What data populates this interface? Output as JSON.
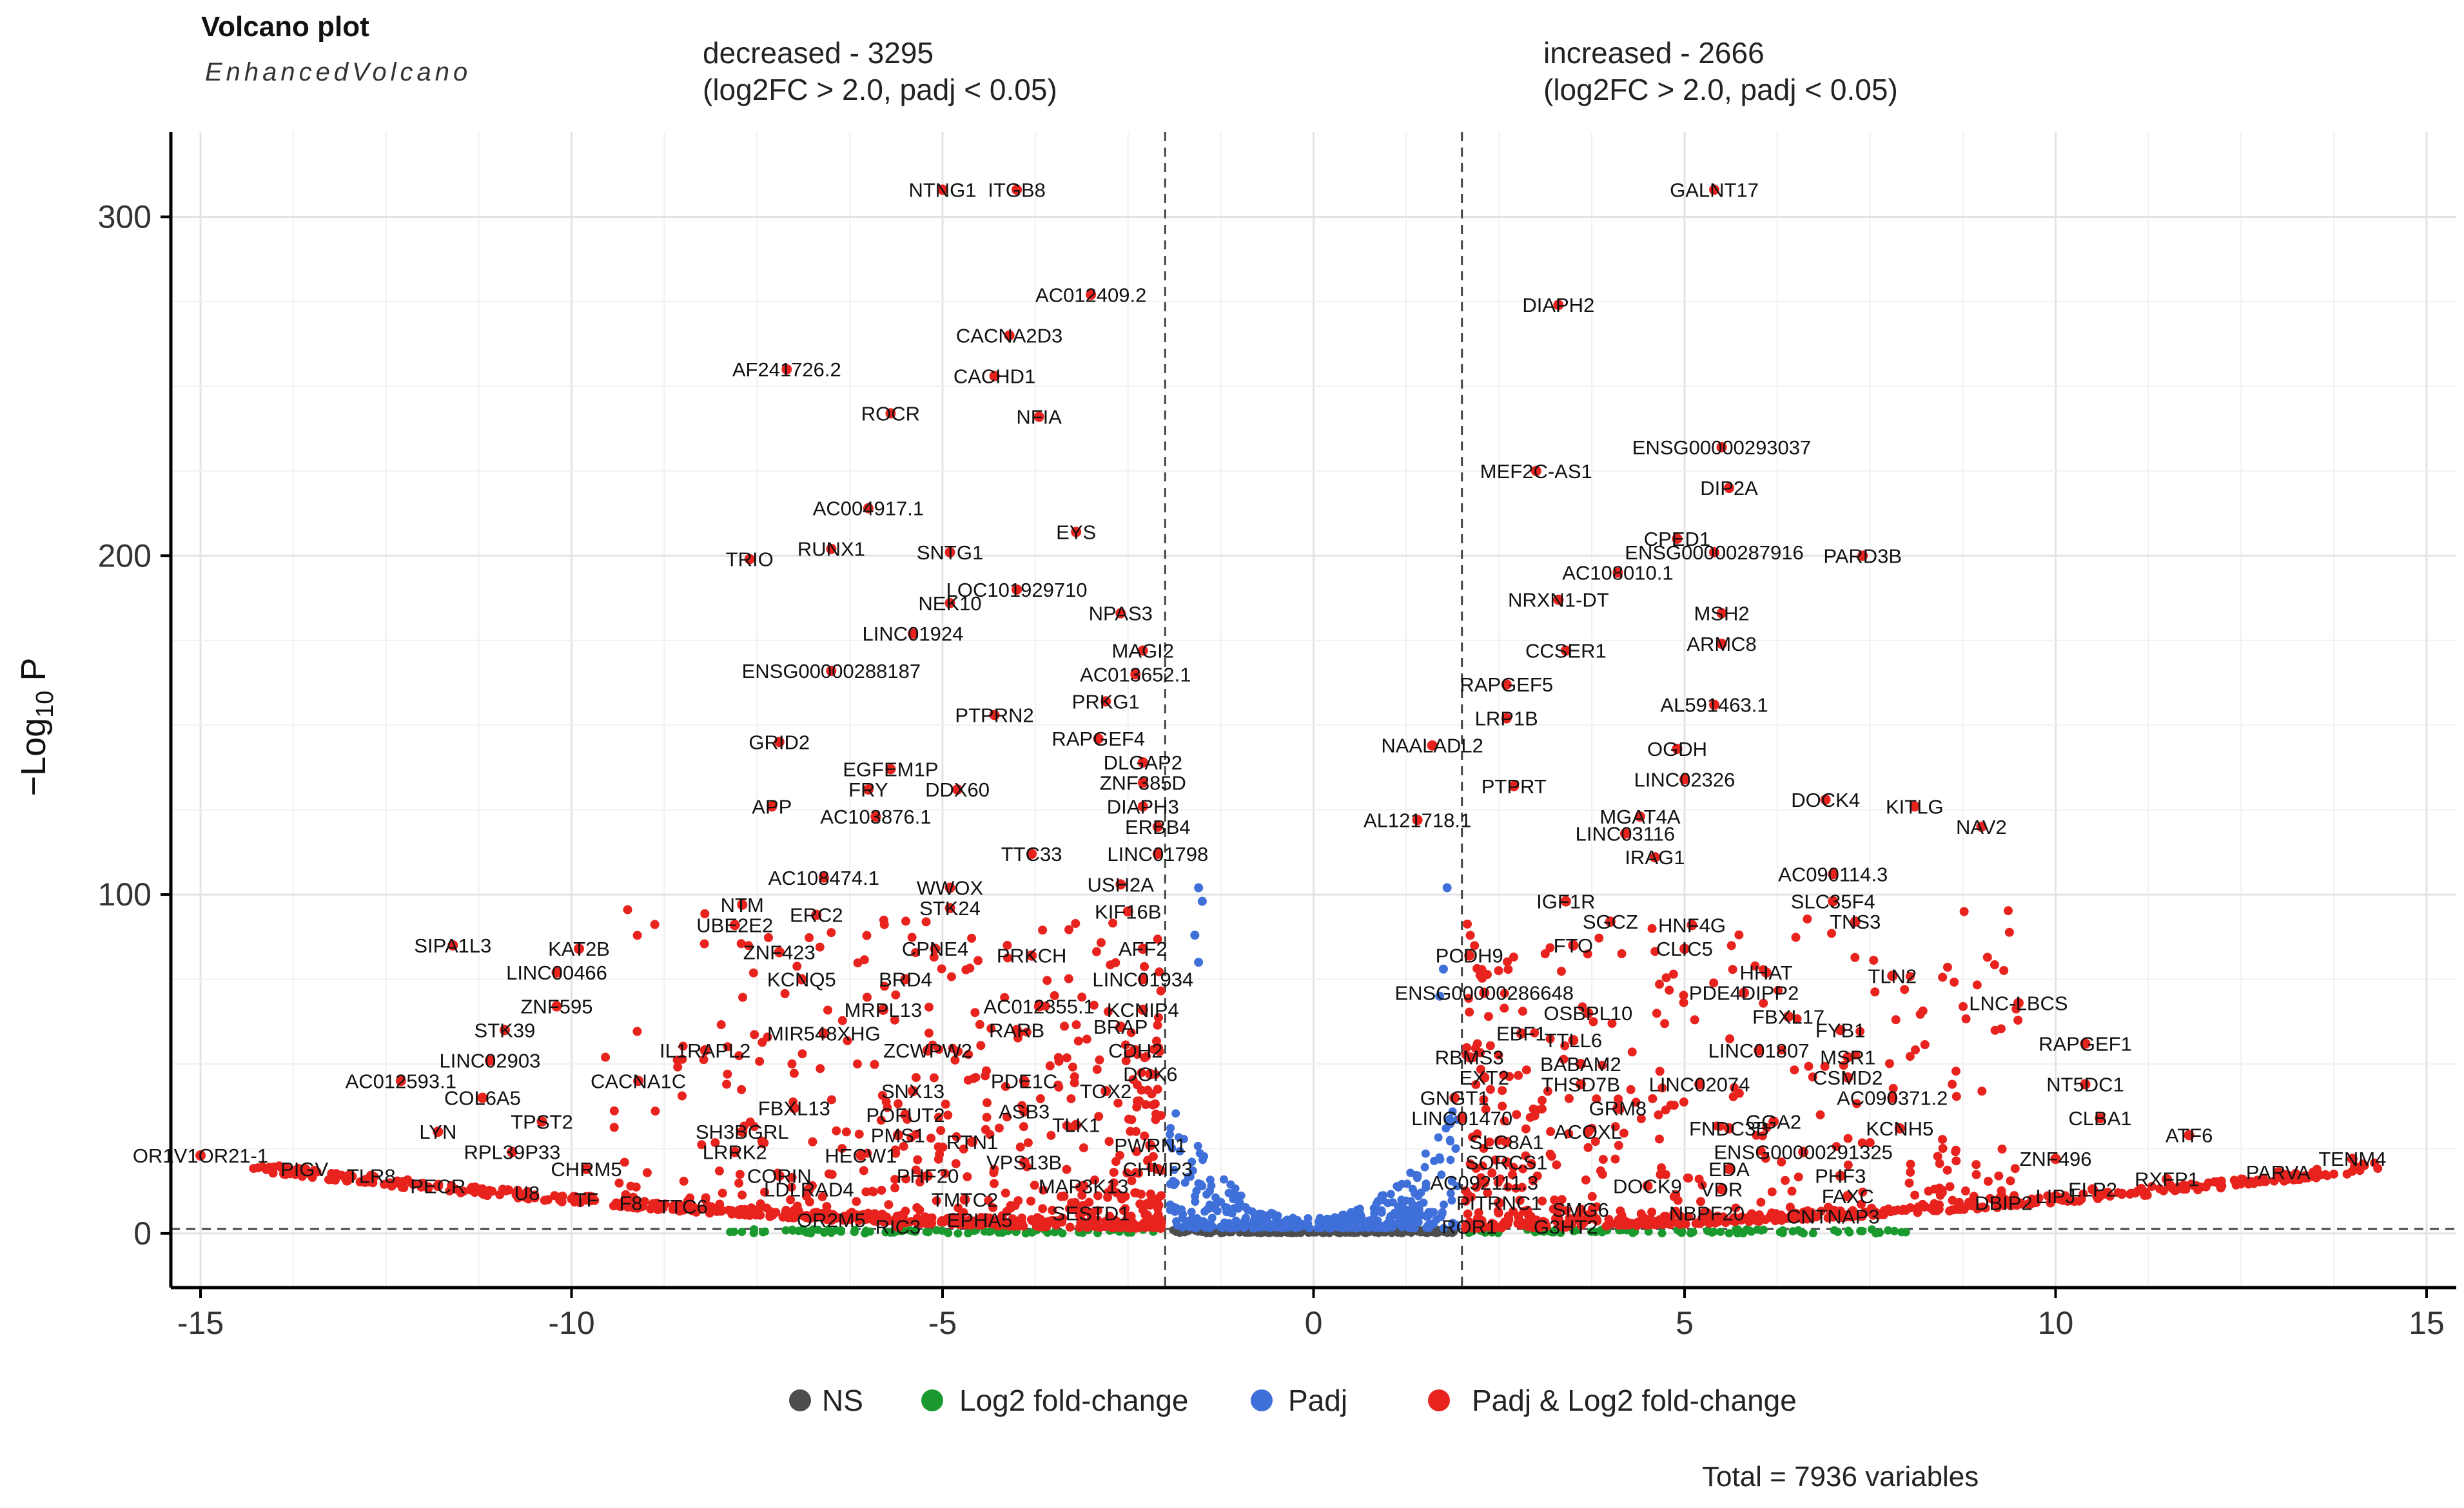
{
  "chart_data": {
    "type": "scatter",
    "title": "Volcano plot",
    "subtitle": "EnhancedVolcano",
    "xlabel": "",
    "ylabel": {
      "prefix": "−Log",
      "subscript": "10",
      "suffix": " P"
    },
    "xlim": [
      -15.4,
      15.4
    ],
    "ylim": [
      -16,
      325
    ],
    "xticks": [
      -15,
      -10,
      -5,
      0,
      5,
      10,
      15
    ],
    "xtick_labels": [
      "-15",
      "-10",
      "-5",
      "0",
      "5",
      "10",
      "15"
    ],
    "yticks": [
      0,
      100,
      200,
      300
    ],
    "ytick_labels": [
      "0",
      "100",
      "200",
      "300"
    ],
    "grid": true,
    "fc_cutoff": 2.0,
    "p_cutoff_y": 1.3,
    "annotations": {
      "left": {
        "line1": "decreased - 3295",
        "line2": "(log2FC > 2.0, padj < 0.05)"
      },
      "right": {
        "line1": "increased - 2666",
        "line2": "(log2FC > 2.0, padj < 0.05)"
      }
    },
    "legend": {
      "position": "bottom",
      "entries": [
        {
          "name": "NS",
          "color": "#4d4d4d"
        },
        {
          "name": "Log2 fold-change",
          "color": "#1a9a2e"
        },
        {
          "name": "Padj",
          "color": "#3f6fd8"
        },
        {
          "name": "Padj & Log2 fold-change",
          "color": "#e8231e"
        }
      ]
    },
    "caption": "Total = 7936 variables",
    "labeled_points": [
      {
        "label": "NTNG1",
        "x": -5.0,
        "y": 308
      },
      {
        "label": "ITGB8",
        "x": -4.0,
        "y": 308
      },
      {
        "label": "GALNT17",
        "x": 5.4,
        "y": 308
      },
      {
        "label": "AC012409.2",
        "x": -3.0,
        "y": 277
      },
      {
        "label": "DIAPH2",
        "x": 3.3,
        "y": 274
      },
      {
        "label": "CACNA2D3",
        "x": -4.1,
        "y": 265
      },
      {
        "label": "AF241726.2",
        "x": -7.1,
        "y": 255
      },
      {
        "label": "CACHD1",
        "x": -4.3,
        "y": 253
      },
      {
        "label": "ROCR",
        "x": -5.7,
        "y": 242
      },
      {
        "label": "NFIA",
        "x": -3.7,
        "y": 241
      },
      {
        "label": "ENSG00000293037",
        "x": 5.5,
        "y": 232
      },
      {
        "label": "MEF2C-AS1",
        "x": 3.0,
        "y": 225
      },
      {
        "label": "DIP2A",
        "x": 5.6,
        "y": 220
      },
      {
        "label": "AC004917.1",
        "x": -6.0,
        "y": 214
      },
      {
        "label": "EYS",
        "x": -3.2,
        "y": 207
      },
      {
        "label": "CPED1",
        "x": 4.9,
        "y": 205
      },
      {
        "label": "RUNX1",
        "x": -6.5,
        "y": 202
      },
      {
        "label": "SNTG1",
        "x": -4.9,
        "y": 201
      },
      {
        "label": "ENSG00000287916",
        "x": 5.4,
        "y": 201
      },
      {
        "label": "PARD3B",
        "x": 7.4,
        "y": 200
      },
      {
        "label": "TRIO",
        "x": -7.6,
        "y": 199
      },
      {
        "label": "AC108010.1",
        "x": 4.1,
        "y": 195
      },
      {
        "label": "LOC101929710",
        "x": -4.0,
        "y": 190
      },
      {
        "label": "NRXN1-DT",
        "x": 3.3,
        "y": 187
      },
      {
        "label": "NEK10",
        "x": -4.9,
        "y": 186
      },
      {
        "label": "NPAS3",
        "x": -2.6,
        "y": 183
      },
      {
        "label": "MSH2",
        "x": 5.5,
        "y": 183
      },
      {
        "label": "LINC01924",
        "x": -5.4,
        "y": 177
      },
      {
        "label": "ARMC8",
        "x": 5.5,
        "y": 174
      },
      {
        "label": "MAGI2",
        "x": -2.3,
        "y": 172
      },
      {
        "label": "CCSER1",
        "x": 3.4,
        "y": 172
      },
      {
        "label": "ENSG00000288187",
        "x": -6.5,
        "y": 166
      },
      {
        "label": "AC013652.1",
        "x": -2.4,
        "y": 165
      },
      {
        "label": "RAPGEF5",
        "x": 2.6,
        "y": 162
      },
      {
        "label": "PRKG1",
        "x": -2.8,
        "y": 157
      },
      {
        "label": "AL591463.1",
        "x": 5.4,
        "y": 156
      },
      {
        "label": "PTPRN2",
        "x": -4.3,
        "y": 153
      },
      {
        "label": "LRP1B",
        "x": 2.6,
        "y": 152
      },
      {
        "label": "RAPGEF4",
        "x": -2.9,
        "y": 146
      },
      {
        "label": "GRID2",
        "x": -7.2,
        "y": 145
      },
      {
        "label": "NAALADL2",
        "x": 1.6,
        "y": 144
      },
      {
        "label": "OGDH",
        "x": 4.9,
        "y": 143
      },
      {
        "label": "DLGAP2",
        "x": -2.3,
        "y": 139
      },
      {
        "label": "EGFEM1P",
        "x": -5.7,
        "y": 137
      },
      {
        "label": "LINC02326",
        "x": 5.0,
        "y": 134
      },
      {
        "label": "ZNF385D",
        "x": -2.3,
        "y": 133
      },
      {
        "label": "PTPRT",
        "x": 2.7,
        "y": 132
      },
      {
        "label": "FRY",
        "x": -6.0,
        "y": 131
      },
      {
        "label": "DDX60",
        "x": -4.8,
        "y": 131
      },
      {
        "label": "DOCK4",
        "x": 6.9,
        "y": 128
      },
      {
        "label": "KITLG",
        "x": 8.1,
        "y": 126
      },
      {
        "label": "DIAPH3",
        "x": -2.3,
        "y": 126
      },
      {
        "label": "APP",
        "x": -7.3,
        "y": 126
      },
      {
        "label": "AC103876.1",
        "x": -5.9,
        "y": 123
      },
      {
        "label": "MGAT4A",
        "x": 4.4,
        "y": 123
      },
      {
        "label": "AL121718.1",
        "x": 1.4,
        "y": 122
      },
      {
        "label": "NAV2",
        "x": 9.0,
        "y": 120
      },
      {
        "label": "ERBB4",
        "x": -2.1,
        "y": 120
      },
      {
        "label": "LINC03116",
        "x": 4.2,
        "y": 118
      },
      {
        "label": "TTC33",
        "x": -3.8,
        "y": 112
      },
      {
        "label": "LINC01798",
        "x": -2.1,
        "y": 112
      },
      {
        "label": "IRAG1",
        "x": 4.6,
        "y": 111
      },
      {
        "label": "AC108474.1",
        "x": -6.6,
        "y": 105
      },
      {
        "label": "AC090114.3",
        "x": 7.0,
        "y": 106
      },
      {
        "label": "USH2A",
        "x": -2.6,
        "y": 103
      },
      {
        "label": "WWOX",
        "x": -4.9,
        "y": 102
      },
      {
        "label": "IGF1R",
        "x": 3.4,
        "y": 98
      },
      {
        "label": "SLC35F4",
        "x": 7.0,
        "y": 98
      },
      {
        "label": "NTM",
        "x": -7.7,
        "y": 97
      },
      {
        "label": "STK24",
        "x": -4.9,
        "y": 96
      },
      {
        "label": "KIF16B",
        "x": -2.5,
        "y": 95
      },
      {
        "label": "ERC2",
        "x": -6.7,
        "y": 94
      },
      {
        "label": "SGCZ",
        "x": 4.0,
        "y": 92
      },
      {
        "label": "TNS3",
        "x": 7.3,
        "y": 92
      },
      {
        "label": "UBE2E2",
        "x": -7.8,
        "y": 91
      },
      {
        "label": "HNF4G",
        "x": 5.1,
        "y": 91
      },
      {
        "label": "SIPA1L3",
        "x": -11.6,
        "y": 85
      },
      {
        "label": "KAT2B",
        "x": -9.9,
        "y": 84
      },
      {
        "label": "ZNF423",
        "x": -7.2,
        "y": 83
      },
      {
        "label": "CPNE4",
        "x": -5.1,
        "y": 84
      },
      {
        "label": "AFF2",
        "x": -2.3,
        "y": 84
      },
      {
        "label": "FTO",
        "x": 3.5,
        "y": 85
      },
      {
        "label": "CLIC5",
        "x": 5.0,
        "y": 84
      },
      {
        "label": "PRKCH",
        "x": -3.8,
        "y": 82
      },
      {
        "label": "PCDH9",
        "x": 2.1,
        "y": 82
      },
      {
        "label": "LINC00466",
        "x": -10.2,
        "y": 77
      },
      {
        "label": "HHAT",
        "x": 6.1,
        "y": 77
      },
      {
        "label": "TLN2",
        "x": 7.8,
        "y": 76
      },
      {
        "label": "KCNQ5",
        "x": -6.9,
        "y": 75
      },
      {
        "label": "BRD4",
        "x": -5.5,
        "y": 75
      },
      {
        "label": "LINC01934",
        "x": -2.3,
        "y": 75
      },
      {
        "label": "ENSG00000286648",
        "x": 2.3,
        "y": 71
      },
      {
        "label": "PDE4DIPP2",
        "x": 5.8,
        "y": 71
      },
      {
        "label": "ZNF595",
        "x": -10.2,
        "y": 67
      },
      {
        "label": "LNC-LBCS",
        "x": 9.5,
        "y": 68
      },
      {
        "label": "MRPL13",
        "x": -5.8,
        "y": 66
      },
      {
        "label": "AC012355.1",
        "x": -3.7,
        "y": 67
      },
      {
        "label": "KCNIP4",
        "x": -2.3,
        "y": 66
      },
      {
        "label": "OSBPL10",
        "x": 3.7,
        "y": 65
      },
      {
        "label": "FBXL17",
        "x": 6.4,
        "y": 64
      },
      {
        "label": "STK39",
        "x": -10.9,
        "y": 60
      },
      {
        "label": "MIR548XHG",
        "x": -6.6,
        "y": 59
      },
      {
        "label": "RARB",
        "x": -4.0,
        "y": 60
      },
      {
        "label": "BRAP",
        "x": -2.6,
        "y": 61
      },
      {
        "label": "EBF1",
        "x": 2.8,
        "y": 59
      },
      {
        "label": "FYB1",
        "x": 7.1,
        "y": 60
      },
      {
        "label": "TTLL6",
        "x": 3.5,
        "y": 57
      },
      {
        "label": "RAPGEF1",
        "x": 10.4,
        "y": 56
      },
      {
        "label": "IL1RAPL2",
        "x": -8.2,
        "y": 54
      },
      {
        "label": "ZCWPW2",
        "x": -5.2,
        "y": 54
      },
      {
        "label": "CDH2",
        "x": -2.4,
        "y": 54
      },
      {
        "label": "LINC01807",
        "x": 6.0,
        "y": 54
      },
      {
        "label": "RBMS3",
        "x": 2.1,
        "y": 52
      },
      {
        "label": "BABAM2",
        "x": 3.6,
        "y": 50
      },
      {
        "label": "MSR1",
        "x": 7.2,
        "y": 52
      },
      {
        "label": "LINC02903",
        "x": -11.1,
        "y": 51
      },
      {
        "label": "DOK6",
        "x": -2.2,
        "y": 47
      },
      {
        "label": "CSMD2",
        "x": 7.2,
        "y": 46
      },
      {
        "label": "AC012593.1",
        "x": -12.3,
        "y": 45
      },
      {
        "label": "CACNA1C",
        "x": -9.1,
        "y": 45
      },
      {
        "label": "PDE1C",
        "x": -3.9,
        "y": 45
      },
      {
        "label": "EXT2",
        "x": 2.3,
        "y": 46
      },
      {
        "label": "THSD7B",
        "x": 3.6,
        "y": 44
      },
      {
        "label": "LINC02074",
        "x": 5.2,
        "y": 44
      },
      {
        "label": "NT5DC1",
        "x": 10.4,
        "y": 44
      },
      {
        "label": "SNX13",
        "x": -5.4,
        "y": 42
      },
      {
        "label": "TOX2",
        "x": -2.8,
        "y": 42
      },
      {
        "label": "GNGT1",
        "x": 1.9,
        "y": 40
      },
      {
        "label": "AC090371.2",
        "x": 7.8,
        "y": 40
      },
      {
        "label": "COL6A5",
        "x": -11.2,
        "y": 40
      },
      {
        "label": "FBXL13",
        "x": -7.0,
        "y": 37
      },
      {
        "label": "ASB3",
        "x": -3.9,
        "y": 36
      },
      {
        "label": "GRM8",
        "x": 4.1,
        "y": 37
      },
      {
        "label": "POFUT2",
        "x": -5.5,
        "y": 35
      },
      {
        "label": "TLK1",
        "x": -3.2,
        "y": 32
      },
      {
        "label": "FNDC3B",
        "x": 5.6,
        "y": 31
      },
      {
        "label": "KCNH5",
        "x": 7.9,
        "y": 31
      },
      {
        "label": "CLBA1",
        "x": 10.6,
        "y": 34
      },
      {
        "label": "TPST2",
        "x": -10.4,
        "y": 33
      },
      {
        "label": "LINC01470",
        "x": 2.0,
        "y": 34
      },
      {
        "label": "ATF6",
        "x": 11.8,
        "y": 29
      },
      {
        "label": "LYN",
        "x": -11.8,
        "y": 30
      },
      {
        "label": "SH3BGRL",
        "x": -7.7,
        "y": 30
      },
      {
        "label": "ACOXL",
        "x": 3.7,
        "y": 30
      },
      {
        "label": "PMS1",
        "x": -5.6,
        "y": 29
      },
      {
        "label": "GGA2",
        "x": 6.2,
        "y": 33
      },
      {
        "label": "RTN1",
        "x": -4.6,
        "y": 27
      },
      {
        "label": "SLC8A1",
        "x": 2.6,
        "y": 27
      },
      {
        "label": "PWRN1",
        "x": -2.2,
        "y": 26
      },
      {
        "label": "RPL39P33",
        "x": -10.8,
        "y": 24
      },
      {
        "label": "LRRK2",
        "x": -7.8,
        "y": 24
      },
      {
        "label": "HECW1",
        "x": -6.1,
        "y": 23
      },
      {
        "label": "ENSG00000291325",
        "x": 6.6,
        "y": 24
      },
      {
        "label": "ZNF496",
        "x": 10.0,
        "y": 22
      },
      {
        "label": "SORCS1",
        "x": 2.6,
        "y": 21
      },
      {
        "label": "OR1V1OR21-1",
        "x": -15.0,
        "y": 23
      },
      {
        "label": "TENM4",
        "x": 14.0,
        "y": 22
      },
      {
        "label": "PIGV",
        "x": -13.6,
        "y": 19
      },
      {
        "label": "CHRM5",
        "x": -9.8,
        "y": 19
      },
      {
        "label": "VPS13B",
        "x": -3.9,
        "y": 21
      },
      {
        "label": "CHMP3",
        "x": -2.1,
        "y": 19
      },
      {
        "label": "EDA",
        "x": 5.6,
        "y": 19
      },
      {
        "label": "PHF3",
        "x": 7.1,
        "y": 17
      },
      {
        "label": "PARVA",
        "x": 13.0,
        "y": 18
      },
      {
        "label": "TLR8",
        "x": -12.7,
        "y": 17
      },
      {
        "label": "CORIN",
        "x": -7.2,
        "y": 17
      },
      {
        "label": "PHF20",
        "x": -5.2,
        "y": 17
      },
      {
        "label": "AC092111.3",
        "x": 2.3,
        "y": 15
      },
      {
        "label": "DOCK9",
        "x": 4.5,
        "y": 14
      },
      {
        "label": "RXFP1",
        "x": 11.5,
        "y": 16
      },
      {
        "label": "PECR",
        "x": -11.8,
        "y": 14
      },
      {
        "label": "MAP3K13",
        "x": -3.1,
        "y": 14
      },
      {
        "label": "VDR",
        "x": 5.5,
        "y": 13
      },
      {
        "label": "FAXC",
        "x": 7.2,
        "y": 11
      },
      {
        "label": "ELP2",
        "x": 10.5,
        "y": 13
      },
      {
        "label": "U8",
        "x": -10.6,
        "y": 12
      },
      {
        "label": "TF",
        "x": -9.8,
        "y": 10
      },
      {
        "label": "LDLRAD4",
        "x": -6.8,
        "y": 13
      },
      {
        "label": "TMTC2",
        "x": -4.7,
        "y": 10
      },
      {
        "label": "PITRNC1",
        "x": 2.5,
        "y": 9
      },
      {
        "label": "SMG6",
        "x": 3.6,
        "y": 7
      },
      {
        "label": "DBIP2",
        "x": 9.3,
        "y": 9
      },
      {
        "label": "LIPJ",
        "x": 10.0,
        "y": 11
      },
      {
        "label": "F8",
        "x": -9.2,
        "y": 9
      },
      {
        "label": "TTC6",
        "x": -8.5,
        "y": 8
      },
      {
        "label": "SESTD1",
        "x": -3.0,
        "y": 6
      },
      {
        "label": "NBPF20",
        "x": 5.3,
        "y": 6
      },
      {
        "label": "CNTNAP3",
        "x": 7.0,
        "y": 5
      },
      {
        "label": "OR2M5",
        "x": -6.5,
        "y": 4
      },
      {
        "label": "EPHA5",
        "x": -4.5,
        "y": 4
      },
      {
        "label": "RIC3",
        "x": -5.6,
        "y": 2
      },
      {
        "label": "ROR1",
        "x": 2.1,
        "y": 2
      },
      {
        "label": "G3HT2",
        "x": 3.4,
        "y": 2
      }
    ]
  }
}
